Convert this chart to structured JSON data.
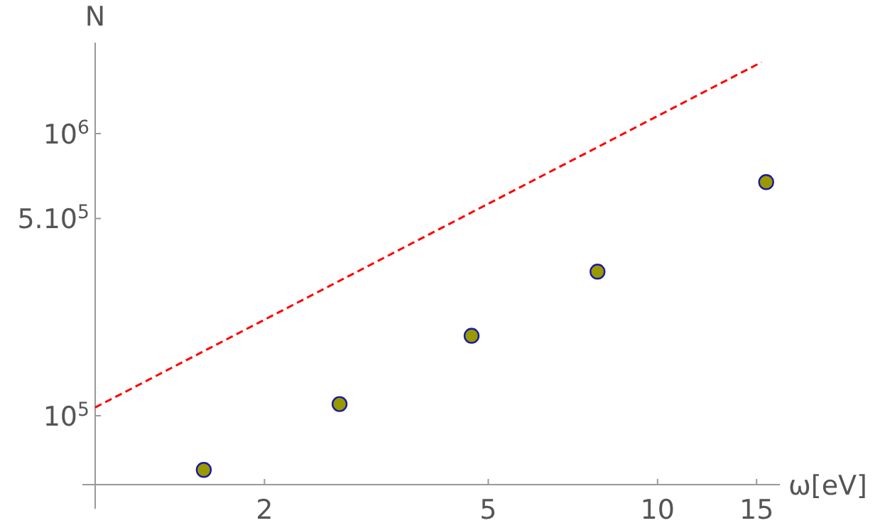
{
  "chart_data": {
    "type": "scatter",
    "xlabel": "ω[eV]",
    "ylabel": "N",
    "log": "xy",
    "xlim": [
      1,
      16.5
    ],
    "ylim": [
      57000,
      2100000
    ],
    "xticks": [
      2,
      5,
      10,
      15
    ],
    "yticks": [
      {
        "value": 100000,
        "label": "10$^{5}$"
      },
      {
        "value": 500000,
        "label": "5.10$^{5}$"
      },
      {
        "value": 1000000,
        "label": "10$^{6}$"
      }
    ],
    "series": [
      {
        "color": "#999900",
        "marker": "circle",
        "x": [
          1.56,
          2.72,
          4.67,
          7.82,
          15.6
        ],
        "values": [
          64300,
          110000,
          192000,
          324000,
          673000
        ]
      },
      {
        "type": "line",
        "color": "#ff0000",
        "line_style": "dashed",
        "marker": "none",
        "x": [
          1,
          15.3
        ],
        "values": [
          107000,
          1790000
        ]
      }
    ]
  }
}
